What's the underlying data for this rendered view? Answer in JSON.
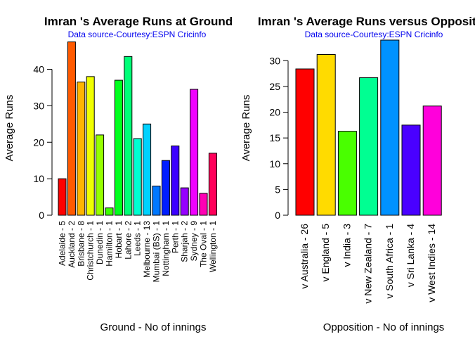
{
  "chart_data": [
    {
      "type": "bar",
      "title": "Imran 's Average Runs at Ground",
      "subtitle": "Data source-Courtesy:ESPN Cricinfo",
      "xlabel": "Ground - No of innings",
      "ylabel": "Average Runs",
      "ylim": [
        0,
        48
      ],
      "yticks": [
        0,
        10,
        20,
        30,
        40
      ],
      "categories": [
        "Adelaide - 5",
        "Auckland - 2",
        "Brisbane - 8",
        "Christchurch - 1",
        "Dunedin - 1",
        "Hamilton - 1",
        "Hobart - 1",
        "Lahore - 2",
        "Leeds - 1",
        "Melbourne - 13",
        "Mumbai (BS) - 1",
        "Nottingham - 1",
        "Perth - 1",
        "Sharjah - 2",
        "Sydney - 9",
        "The Oval - 1",
        "Wellington - 1"
      ],
      "values": [
        10,
        47.5,
        36.5,
        38,
        22,
        2,
        37,
        43.5,
        21,
        25,
        8,
        15,
        19,
        7.5,
        34.5,
        6,
        17
      ],
      "colors": [
        "#FF0000",
        "#FF5A00",
        "#FFB400",
        "#F0FF00",
        "#96FF00",
        "#3CFF00",
        "#00FF1E",
        "#00FF78",
        "#00FFD2",
        "#00D2FF",
        "#0078FF",
        "#001EFF",
        "#3C00FF",
        "#9600FF",
        "#F000FF",
        "#FF00B4",
        "#FF005A"
      ]
    },
    {
      "type": "bar",
      "title": "Imran 's Average Runs versus Opposition",
      "subtitle": "Data source-Courtesy:ESPN Cricinfo",
      "xlabel": "Opposition - No of innings",
      "ylabel": "Average Runs",
      "ylim": [
        0,
        34
      ],
      "yticks": [
        0,
        5,
        10,
        15,
        20,
        25,
        30
      ],
      "categories": [
        "v Australia - 26",
        "v England - 5",
        "v India - 3",
        "v New Zealand - 7",
        "v South Africa - 1",
        "v Sri Lanka - 4",
        "v West Indies - 14"
      ],
      "values": [
        28.4,
        31.2,
        16.3,
        26.7,
        34,
        17.5,
        21.2
      ],
      "colors": [
        "#FF0000",
        "#FFDB00",
        "#49FF00",
        "#00FF92",
        "#0092FF",
        "#4900FF",
        "#FF00DB"
      ]
    }
  ]
}
